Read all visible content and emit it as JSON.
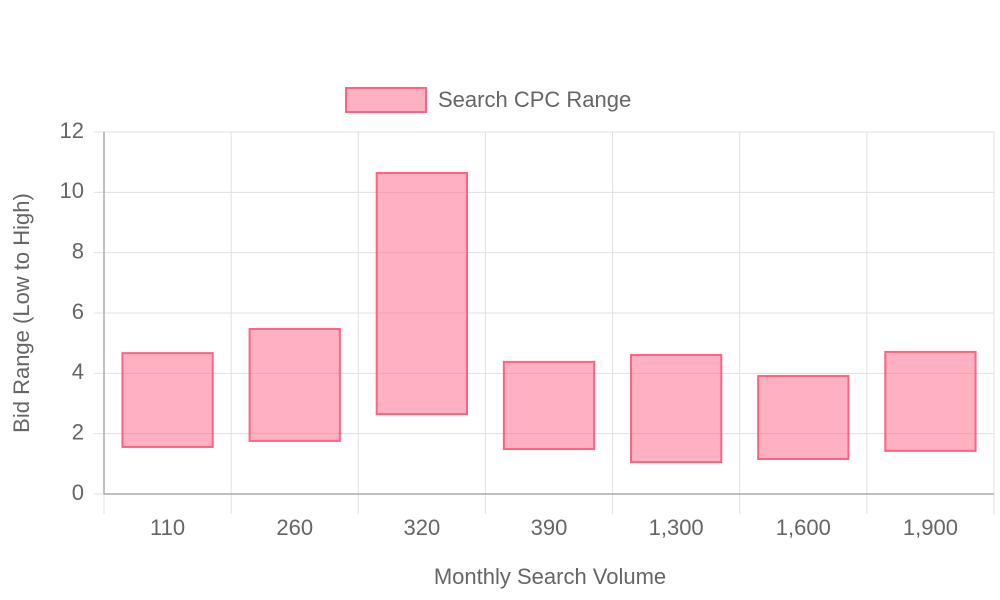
{
  "chart_data": {
    "type": "floating-bar",
    "categories": [
      "110",
      "260",
      "320",
      "390",
      "1,300",
      "1,600",
      "1,900"
    ],
    "series": [
      {
        "name": "Search CPC Range",
        "color": "#ff6384",
        "low": [
          1.56,
          1.76,
          2.65,
          1.49,
          1.06,
          1.16,
          1.43
        ],
        "high": [
          4.67,
          5.47,
          10.64,
          4.38,
          4.61,
          3.91,
          4.71
        ]
      }
    ],
    "ylim": [
      0,
      12
    ],
    "yticks": [
      0,
      2,
      4,
      6,
      8,
      10,
      12
    ],
    "x_label": "Monthly Search Volume",
    "y_label": "Bid Range (Low to High)",
    "grid": true,
    "legend": "top"
  }
}
